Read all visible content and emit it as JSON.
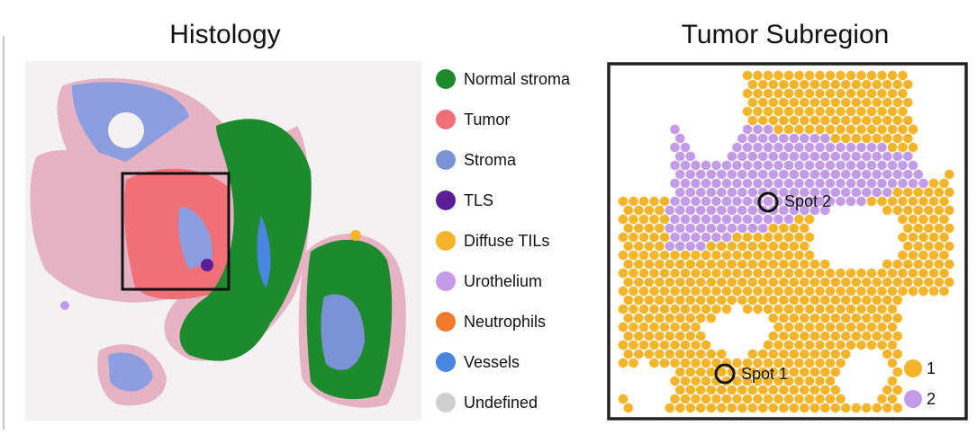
{
  "histology": {
    "title": "Histology",
    "legend": [
      {
        "label": "Normal stroma",
        "color": "#1e8a2e"
      },
      {
        "label": "Tumor",
        "color": "#f07078"
      },
      {
        "label": "Stroma",
        "color": "#7b93d6"
      },
      {
        "label": "TLS",
        "color": "#5b1e96"
      },
      {
        "label": "Diffuse TILs",
        "color": "#f6b42a"
      },
      {
        "label": "Urothelium",
        "color": "#c39be8"
      },
      {
        "label": "Neutrophils",
        "color": "#f07a2c"
      },
      {
        "label": "Vessels",
        "color": "#4a86e0"
      },
      {
        "label": "Undefined",
        "color": "#cfcfcf"
      }
    ]
  },
  "subregion": {
    "title": "Tumor Subregion",
    "spots": [
      "Spot 1",
      "Spot 2"
    ],
    "legend": [
      {
        "label": "1",
        "color": "#f6b42a"
      },
      {
        "label": "2",
        "color": "#c39be8"
      }
    ]
  }
}
